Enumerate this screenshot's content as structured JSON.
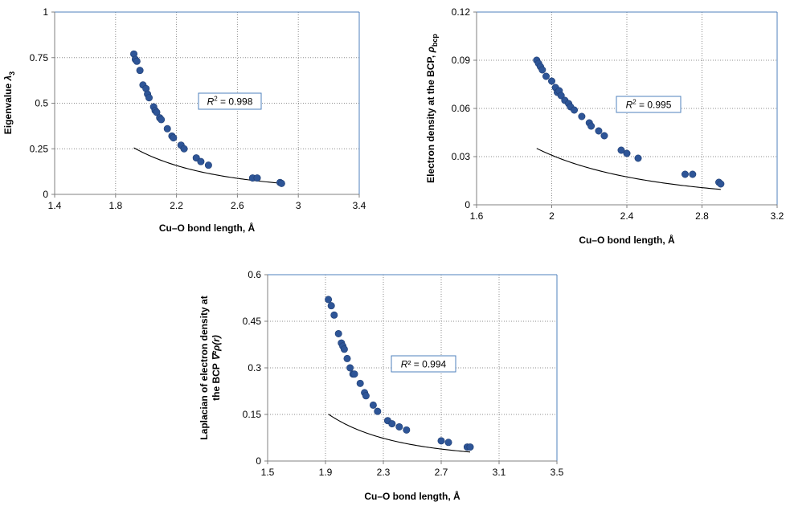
{
  "chart_data": [
    {
      "type": "scatter",
      "title": "",
      "xlabel": "Cu–O bond length, Å",
      "ylabel_parts": [
        "Eigenvalue ",
        "λ",
        "3"
      ],
      "xlim": [
        1.4,
        3.4
      ],
      "ylim": [
        0,
        1
      ],
      "xticks": [
        1.4,
        1.8,
        2.2,
        2.6,
        3,
        3.4
      ],
      "yticks": [
        0,
        0.25,
        0.5,
        0.75,
        1
      ],
      "xtick_labels": [
        "1.4",
        "1.8",
        "2.2",
        "2.6",
        "3",
        "3.4"
      ],
      "ytick_labels": [
        "0",
        "0.25",
        "0.5",
        "0.75",
        "1"
      ],
      "grid": true,
      "marker_color": "#2e5597",
      "trendline": {
        "type": "power",
        "a": 2.54,
        "b": -3.52,
        "color": "#000000"
      },
      "r2_prefix": "R",
      "r2_sup": "2",
      "r2_value": " = 0.998",
      "series": [
        {
          "name": "λ3",
          "x": [
            1.92,
            1.93,
            1.94,
            1.96,
            1.98,
            2.0,
            2.01,
            2.02,
            2.05,
            2.06,
            2.07,
            2.09,
            2.1,
            2.14,
            2.17,
            2.18,
            2.23,
            2.25,
            2.33,
            2.36,
            2.41,
            2.7,
            2.73,
            2.88,
            2.89
          ],
          "y": [
            0.77,
            0.74,
            0.73,
            0.68,
            0.6,
            0.58,
            0.55,
            0.53,
            0.48,
            0.46,
            0.45,
            0.42,
            0.41,
            0.36,
            0.32,
            0.31,
            0.27,
            0.25,
            0.2,
            0.18,
            0.16,
            0.09,
            0.09,
            0.065,
            0.06
          ]
        }
      ]
    },
    {
      "type": "scatter",
      "title": "",
      "xlabel": "Cu–O bond length, Å",
      "ylabel_parts": [
        "Electron density at the BCP, ",
        "ρ",
        "bcp"
      ],
      "xlim": [
        1.6,
        3.2
      ],
      "ylim": [
        0,
        0.12
      ],
      "xticks": [
        1.6,
        2,
        2.4,
        2.8,
        3.2
      ],
      "yticks": [
        0,
        0.03,
        0.06,
        0.09,
        0.12
      ],
      "xtick_labels": [
        "1.6",
        "2",
        "2.4",
        "2.8",
        "3.2"
      ],
      "ytick_labels": [
        "0",
        "0.03",
        "0.06",
        "0.09",
        "0.12"
      ],
      "grid": true,
      "marker_color": "#2e5597",
      "trendline": {
        "type": "power",
        "a": 0.274,
        "b": -3.15,
        "color": "#000000"
      },
      "r2_prefix": "R",
      "r2_sup": "2",
      "r2_value": " = 0.995",
      "series": [
        {
          "name": "ρbcp",
          "x": [
            1.92,
            1.93,
            1.94,
            1.95,
            1.97,
            2.0,
            2.02,
            2.03,
            2.04,
            2.05,
            2.07,
            2.09,
            2.1,
            2.12,
            2.16,
            2.2,
            2.21,
            2.25,
            2.28,
            2.37,
            2.4,
            2.46,
            2.71,
            2.75,
            2.89,
            2.9
          ],
          "y": [
            0.09,
            0.088,
            0.086,
            0.084,
            0.08,
            0.077,
            0.073,
            0.07,
            0.071,
            0.068,
            0.065,
            0.063,
            0.061,
            0.059,
            0.055,
            0.051,
            0.049,
            0.046,
            0.043,
            0.034,
            0.032,
            0.029,
            0.019,
            0.019,
            0.014,
            0.013
          ]
        }
      ]
    },
    {
      "type": "scatter",
      "title": "",
      "xlabel": "Cu–O bond length, Å",
      "ylabel_line1": "Laplacian of electron density at",
      "ylabel_parts": [
        "the BCP ",
        "∇²ρ(r)"
      ],
      "xlim": [
        1.5,
        3.5
      ],
      "ylim": [
        0,
        0.6
      ],
      "xticks": [
        1.5,
        1.9,
        2.3,
        2.7,
        3.1,
        3.5
      ],
      "yticks": [
        0,
        0.15,
        0.3,
        0.45,
        0.6
      ],
      "xtick_labels": [
        "1.5",
        "1.9",
        "2.3",
        "2.7",
        "3.1",
        "3.5"
      ],
      "ytick_labels": [
        "0",
        "0.15",
        "0.3",
        "0.45",
        "0.6"
      ],
      "grid": true,
      "marker_color": "#2e5597",
      "trendline": {
        "type": "power",
        "a": 2.05,
        "b": -4.0,
        "color": "#000000"
      },
      "r2_prefix": "R",
      "r2_sup": "²",
      "r2_value": " = 0.994",
      "series": [
        {
          "name": "∇²ρ(r)",
          "x": [
            1.92,
            1.94,
            1.96,
            1.99,
            2.01,
            2.02,
            2.03,
            2.05,
            2.07,
            2.09,
            2.1,
            2.14,
            2.17,
            2.18,
            2.23,
            2.26,
            2.33,
            2.36,
            2.41,
            2.46,
            2.7,
            2.75,
            2.88,
            2.9
          ],
          "y": [
            0.52,
            0.5,
            0.47,
            0.41,
            0.38,
            0.37,
            0.36,
            0.33,
            0.3,
            0.28,
            0.28,
            0.25,
            0.22,
            0.21,
            0.18,
            0.16,
            0.13,
            0.12,
            0.11,
            0.1,
            0.065,
            0.06,
            0.045,
            0.045
          ]
        }
      ]
    }
  ]
}
